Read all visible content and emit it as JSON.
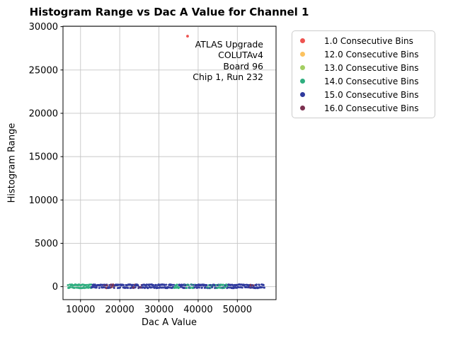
{
  "chart_data": {
    "type": "scatter",
    "title": "Histogram Range vs Dac A Value for Channel 1",
    "xlabel": "Dac A Value",
    "ylabel": "Histogram Range",
    "xlim": [
      5530,
      59870
    ],
    "ylim": [
      -1500,
      30050
    ],
    "xticks": [
      10000,
      20000,
      30000,
      40000,
      50000
    ],
    "yticks": [
      0,
      5000,
      10000,
      15000,
      20000,
      25000,
      30000
    ],
    "grid": true,
    "grid_color": "#c6c6c6",
    "spine_color": "#000000",
    "legend": {
      "position": "upper-right",
      "entries": [
        {
          "key": "1.0",
          "label": "1.0 Consecutive Bins",
          "color": "#ee5350"
        },
        {
          "key": "12.0",
          "label": "12.0 Consecutive Bins",
          "color": "#fcc25f"
        },
        {
          "key": "13.0",
          "label": "13.0 Consecutive Bins",
          "color": "#a3ce62"
        },
        {
          "key": "14.0",
          "label": "14.0 Consecutive Bins",
          "color": "#2fae7f"
        },
        {
          "key": "15.0",
          "label": "15.0 Consecutive Bins",
          "color": "#2f3a9e"
        },
        {
          "key": "16.0",
          "label": "16.0 Consecutive Bins",
          "color": "#7c3150"
        }
      ]
    },
    "annotation": {
      "align": "right",
      "lines": [
        "ATLAS Upgrade",
        "COLUTAv4",
        "Board 96",
        "Chip 1, Run 232"
      ]
    },
    "outlier_points": [
      {
        "series": "1.0 Consecutive Bins",
        "x": 37300,
        "y": 28900,
        "color": "#ee5350"
      }
    ],
    "band": {
      "description": "Dense overlapping scatter points with Histogram Range approx 0-300 across the full Dac A sweep",
      "y_value_range": [
        0,
        300
      ],
      "segments": [
        {
          "x_start": 6800,
          "x_end": 12800,
          "colors": [
            "14.0"
          ],
          "weights": [
            1
          ]
        },
        {
          "x_start": 12800,
          "x_end": 16100,
          "colors": [
            "15.0"
          ],
          "weights": [
            1
          ]
        },
        {
          "x_start": 16100,
          "x_end": 19300,
          "colors": [
            "15.0",
            "16.0"
          ],
          "weights": [
            0.65,
            0.35
          ]
        },
        {
          "x_start": 19300,
          "x_end": 23400,
          "colors": [
            "15.0"
          ],
          "weights": [
            1
          ]
        },
        {
          "x_start": 23400,
          "x_end": 26100,
          "colors": [
            "15.0",
            "16.0"
          ],
          "weights": [
            0.65,
            0.35
          ]
        },
        {
          "x_start": 26100,
          "x_end": 33900,
          "colors": [
            "15.0"
          ],
          "weights": [
            1
          ]
        },
        {
          "x_start": 33900,
          "x_end": 35100,
          "colors": [
            "14.0"
          ],
          "weights": [
            1
          ]
        },
        {
          "x_start": 35100,
          "x_end": 36600,
          "colors": [
            "15.0"
          ],
          "weights": [
            1
          ]
        },
        {
          "x_start": 36600,
          "x_end": 39300,
          "colors": [
            "14.0",
            "15.0"
          ],
          "weights": [
            0.5,
            0.5
          ]
        },
        {
          "x_start": 39300,
          "x_end": 42000,
          "colors": [
            "15.0"
          ],
          "weights": [
            1
          ]
        },
        {
          "x_start": 42000,
          "x_end": 47600,
          "colors": [
            "14.0",
            "15.0"
          ],
          "weights": [
            0.55,
            0.45
          ]
        },
        {
          "x_start": 47600,
          "x_end": 52800,
          "colors": [
            "15.0"
          ],
          "weights": [
            1
          ]
        },
        {
          "x_start": 52800,
          "x_end": 54300,
          "colors": [
            "15.0",
            "16.0"
          ],
          "weights": [
            0.6,
            0.4
          ]
        },
        {
          "x_start": 54300,
          "x_end": 56900,
          "colors": [
            "15.0"
          ],
          "weights": [
            1
          ]
        }
      ]
    }
  }
}
